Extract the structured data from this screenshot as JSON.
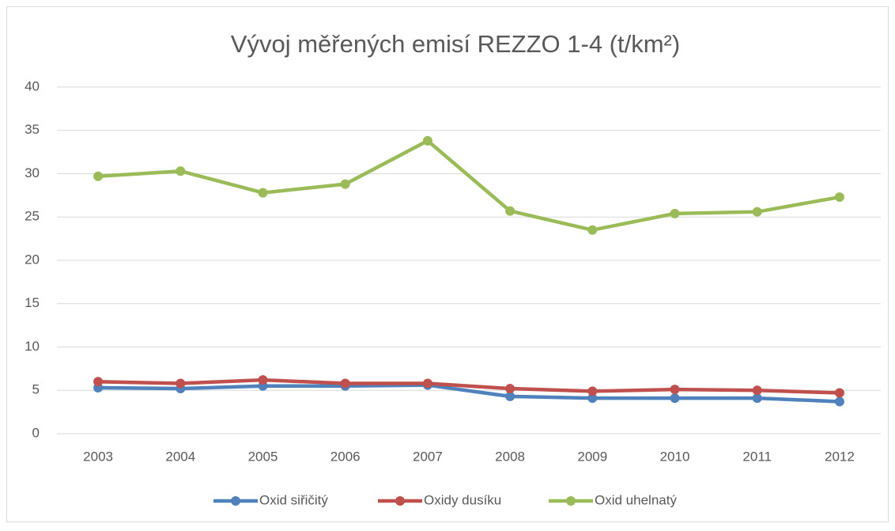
{
  "chart_data": {
    "type": "line",
    "title": "Vývoj měřených emisí REZZO 1-4 (t/km²)",
    "categories": [
      "2003",
      "2004",
      "2005",
      "2006",
      "2007",
      "2008",
      "2009",
      "2010",
      "2011",
      "2012"
    ],
    "series": [
      {
        "name": "Oxid siřičitý",
        "color": "#4f81bd",
        "values": [
          5.3,
          5.2,
          5.5,
          5.5,
          5.6,
          4.3,
          4.1,
          4.1,
          4.1,
          3.7
        ]
      },
      {
        "name": "Oxidy dusíku",
        "color": "#c0504d",
        "values": [
          6.0,
          5.8,
          6.2,
          5.8,
          5.8,
          5.2,
          4.9,
          5.1,
          5.0,
          4.7
        ]
      },
      {
        "name": "Oxid uhelnatý",
        "color": "#9bbb59",
        "values": [
          29.7,
          30.3,
          27.8,
          28.8,
          33.8,
          25.7,
          23.5,
          25.4,
          25.6,
          27.3
        ]
      }
    ],
    "ylim": [
      0,
      40
    ],
    "yticks": [
      0,
      5,
      10,
      15,
      20,
      25,
      30,
      35,
      40
    ],
    "grid": true,
    "legend": "bottom"
  }
}
